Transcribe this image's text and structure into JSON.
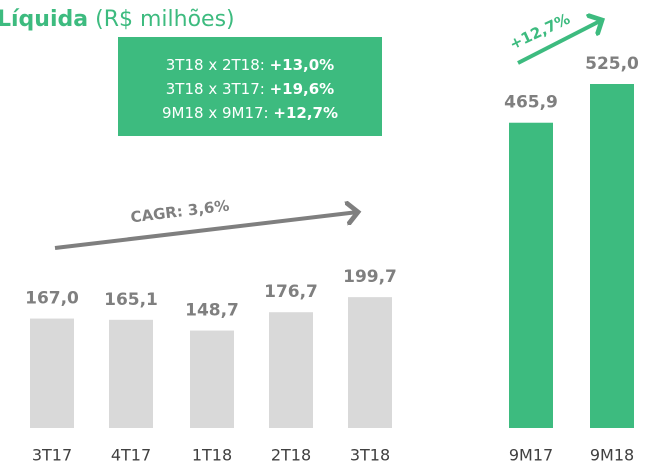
{
  "chart_data": {
    "type": "bar",
    "title": "Líquida",
    "title_unit": "(R$ milhões)",
    "categories": [
      "3T17",
      "4T17",
      "1T18",
      "2T18",
      "3T18",
      "9M17",
      "9M18"
    ],
    "values": [
      167.0,
      165.1,
      148.7,
      176.7,
      199.7,
      465.9,
      525.0
    ],
    "value_labels": [
      "167,0",
      "165,1",
      "148,7",
      "176,7",
      "199,7",
      "465,9",
      "525,0"
    ],
    "colors": [
      "#d9d9d9",
      "#d9d9d9",
      "#d9d9d9",
      "#d9d9d9",
      "#d9d9d9",
      "#3dbb7f",
      "#3dbb7f"
    ],
    "comparisons": [
      {
        "label": "3T18 x 2T18:",
        "value": "+13,0%"
      },
      {
        "label": "3T18 x 3T17:",
        "value": "+19,6%"
      },
      {
        "label": "9M18 x 9M17:",
        "value": "+12,7%"
      }
    ],
    "annotations": {
      "cagr": "CAGR: 3,6%",
      "growth": "+12,7%"
    }
  }
}
